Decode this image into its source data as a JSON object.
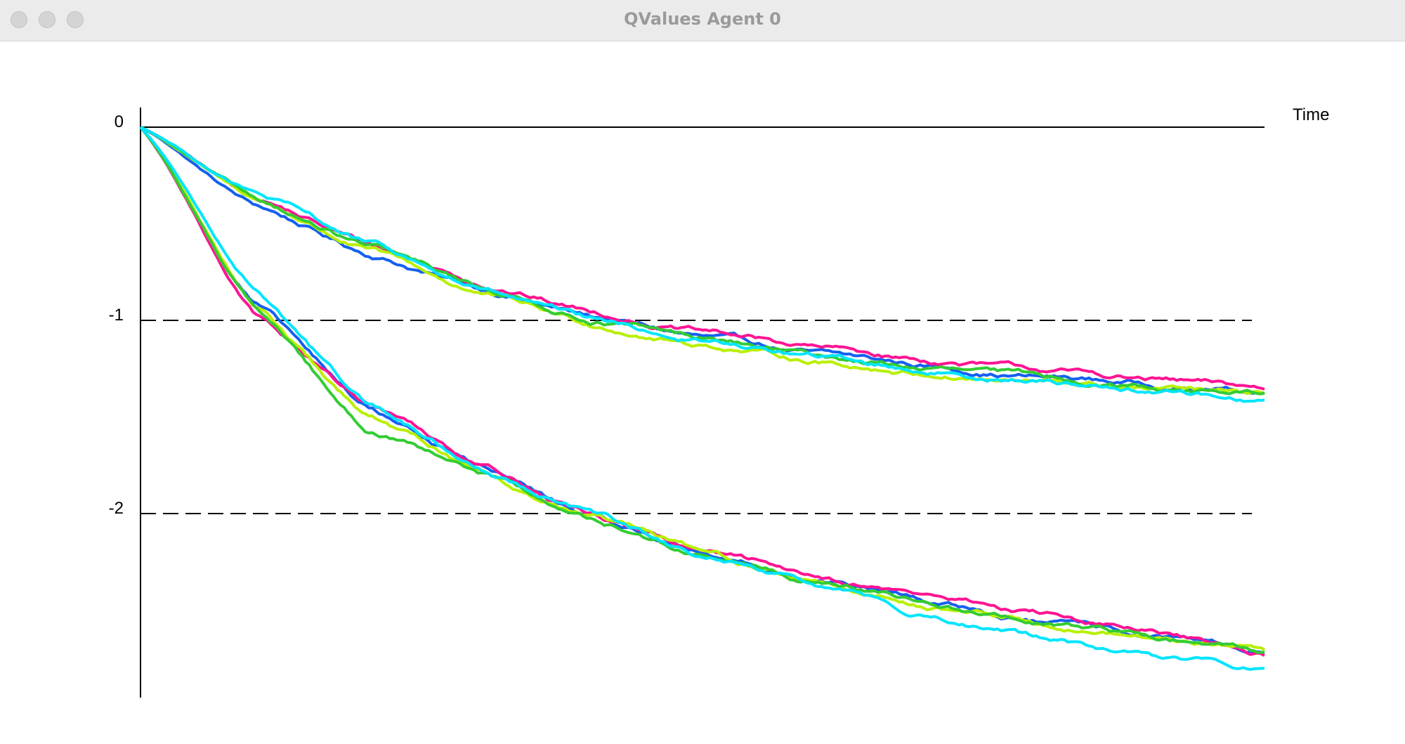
{
  "window": {
    "title": "QValues Agent 0"
  },
  "window_controls": {
    "close_icon": "close-icon",
    "minimize_icon": "minimize-icon",
    "zoom_icon": "zoom-icon"
  },
  "chart_data": {
    "type": "line",
    "title": "",
    "xlabel": "Time",
    "ylabel": "",
    "ylim": [
      -2.95,
      0.1
    ],
    "xlim": [
      0,
      1
    ],
    "yticks": [
      "0",
      "-1",
      "-2"
    ],
    "ytick_values": [
      0,
      -1,
      -2
    ],
    "grid": "dashed horizontal at -1 and -2",
    "legend": "none",
    "series": [
      {
        "color": "#1560f0",
        "x": [
          0,
          0.1,
          0.2,
          0.3,
          0.4,
          0.5,
          0.6,
          0.7,
          0.8,
          0.9,
          1
        ],
        "values": [
          0,
          -0.4,
          -0.65,
          -0.83,
          -0.98,
          -1.09,
          -1.18,
          -1.24,
          -1.29,
          -1.33,
          -1.37
        ]
      },
      {
        "color": "#ff1493",
        "x": [
          0,
          0.1,
          0.2,
          0.3,
          0.4,
          0.5,
          0.6,
          0.7,
          0.8,
          0.9,
          1
        ],
        "values": [
          0,
          -0.36,
          -0.6,
          -0.8,
          -0.95,
          -1.06,
          -1.14,
          -1.21,
          -1.26,
          -1.31,
          -1.36
        ]
      },
      {
        "color": "#b8f000",
        "x": [
          0,
          0.1,
          0.2,
          0.3,
          0.4,
          0.5,
          0.6,
          0.7,
          0.8,
          0.9,
          1
        ],
        "values": [
          0,
          -0.37,
          -0.63,
          -0.86,
          -1.02,
          -1.12,
          -1.21,
          -1.27,
          -1.32,
          -1.36,
          -1.4
        ]
      },
      {
        "color": "#33cc33",
        "x": [
          0,
          0.1,
          0.2,
          0.3,
          0.4,
          0.5,
          0.6,
          0.7,
          0.8,
          0.9,
          1
        ],
        "values": [
          0,
          -0.37,
          -0.62,
          -0.83,
          -0.99,
          -1.1,
          -1.19,
          -1.25,
          -1.3,
          -1.34,
          -1.38
        ]
      },
      {
        "color": "#00e5ff",
        "x": [
          0,
          0.1,
          0.2,
          0.3,
          0.4,
          0.5,
          0.6,
          0.7,
          0.8,
          0.9,
          1
        ],
        "values": [
          0,
          -0.34,
          -0.6,
          -0.84,
          -1.01,
          -1.11,
          -1.19,
          -1.26,
          -1.31,
          -1.36,
          -1.41
        ]
      },
      {
        "color": "#1560f0",
        "x": [
          0,
          0.1,
          0.2,
          0.3,
          0.4,
          0.5,
          0.6,
          0.7,
          0.8,
          0.9,
          1
        ],
        "values": [
          0,
          -0.9,
          -1.45,
          -1.75,
          -2.02,
          -2.2,
          -2.34,
          -2.46,
          -2.56,
          -2.64,
          -2.72
        ]
      },
      {
        "color": "#ff1493",
        "x": [
          0,
          0.1,
          0.2,
          0.3,
          0.4,
          0.5,
          0.6,
          0.7,
          0.8,
          0.9,
          1
        ],
        "values": [
          0,
          -0.95,
          -1.42,
          -1.72,
          -2.0,
          -2.2,
          -2.32,
          -2.42,
          -2.52,
          -2.62,
          -2.75
        ]
      },
      {
        "color": "#b8f000",
        "x": [
          0,
          0.1,
          0.2,
          0.3,
          0.4,
          0.5,
          0.6,
          0.7,
          0.8,
          0.9,
          1
        ],
        "values": [
          0,
          -0.9,
          -1.5,
          -1.77,
          -2.02,
          -2.21,
          -2.35,
          -2.47,
          -2.56,
          -2.64,
          -2.71
        ]
      },
      {
        "color": "#33cc33",
        "x": [
          0,
          0.1,
          0.2,
          0.3,
          0.4,
          0.5,
          0.6,
          0.7,
          0.8,
          0.9,
          1
        ],
        "values": [
          0,
          -0.92,
          -1.55,
          -1.8,
          -2.04,
          -2.22,
          -2.35,
          -2.47,
          -2.57,
          -2.65,
          -2.72
        ]
      },
      {
        "color": "#00e5ff",
        "x": [
          0,
          0.1,
          0.2,
          0.3,
          0.4,
          0.5,
          0.6,
          0.7,
          0.8,
          0.9,
          1
        ],
        "values": [
          0,
          -0.82,
          -1.42,
          -1.75,
          -2.0,
          -2.24,
          -2.38,
          -2.53,
          -2.65,
          -2.75,
          -2.8
        ]
      }
    ]
  }
}
